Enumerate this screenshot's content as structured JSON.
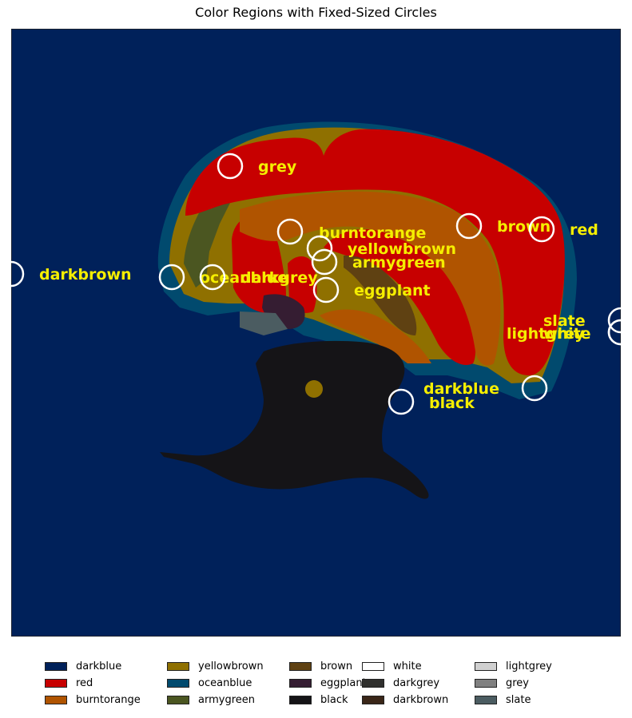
{
  "chart_data": {
    "type": "image-annotation",
    "title": "Color Regions with Fixed-Sized Circles",
    "colors": {
      "darkblue": "#00215a",
      "red": "#c70000",
      "burntorange": "#b05400",
      "yellowbrown": "#8f7000",
      "oceanblue": "#014a6e",
      "armygreen": "#4b5621",
      "brown": "#5f4112",
      "eggplant": "#351d32",
      "black": "#151417",
      "white": "#ffffff",
      "darkgrey": "#30302e",
      "darkbrown": "#3a2618",
      "lightgrey": "#d0d0d0",
      "grey": "#808080",
      "slate": "#4b5c61"
    },
    "label_color": "#f5ee00",
    "legend": [
      {
        "label": "darkblue",
        "color": "#00215a"
      },
      {
        "label": "yellowbrown",
        "color": "#8f7000"
      },
      {
        "label": "brown",
        "color": "#5f4112"
      },
      {
        "label": "white",
        "color": "#ffffff"
      },
      {
        "label": "lightgrey",
        "color": "#d0d0d0"
      },
      {
        "label": "red",
        "color": "#c70000"
      },
      {
        "label": "oceanblue",
        "color": "#014a6e"
      },
      {
        "label": "eggplant",
        "color": "#351d32"
      },
      {
        "label": "darkgrey",
        "color": "#30302e"
      },
      {
        "label": "grey",
        "color": "#808080"
      },
      {
        "label": "burntorange",
        "color": "#b05400"
      },
      {
        "label": "armygreen",
        "color": "#4b5621"
      },
      {
        "label": "black",
        "color": "#151417"
      },
      {
        "label": "darkbrown",
        "color": "#3a2618"
      },
      {
        "label": "slate",
        "color": "#4b5c61"
      }
    ],
    "annotations": [
      {
        "label": "grey"
      },
      {
        "label": "burntorange"
      },
      {
        "label": "yellowbrown"
      },
      {
        "label": "armygreen"
      },
      {
        "label": "brown"
      },
      {
        "label": "red"
      },
      {
        "label": "darkbrown"
      },
      {
        "label": "oceanblue"
      },
      {
        "label": "darkgrey"
      },
      {
        "label": "eggplant"
      },
      {
        "label": "slate"
      },
      {
        "label": "lightgrey"
      },
      {
        "label": "white"
      },
      {
        "label": "darkblue"
      },
      {
        "label": "black"
      }
    ]
  }
}
